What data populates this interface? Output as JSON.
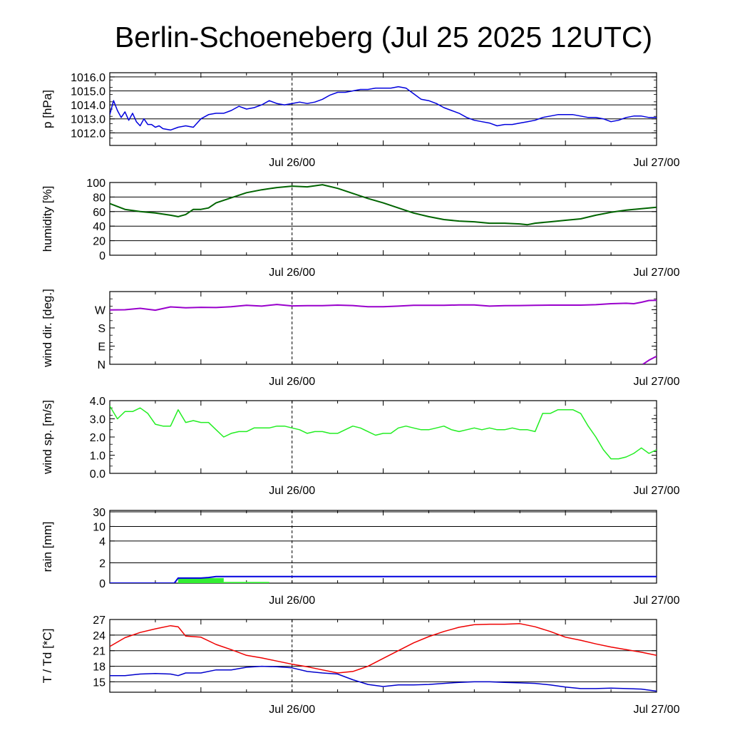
{
  "title": "Berlin-Schoeneberg (Jul 25 2025 12UTC)",
  "x_tick_labels": [
    "Jul 26/00",
    "Jul 27/00"
  ],
  "colors": {
    "pressure": "#0000dd",
    "humidity": "#006400",
    "wind_dir": "#9900cc",
    "wind_sp": "#22ee22",
    "rain_bar": "#33ee33",
    "rain_line": "#0000dd",
    "temp": "#ee0000",
    "dew": "#0000cc"
  },
  "chart_data": [
    {
      "type": "line",
      "id": "pressure",
      "ylabel": "p [hPa]",
      "ylim": [
        1011.1,
        1016.3
      ],
      "yticks": [
        1012.0,
        1013.0,
        1014.0,
        1015.0,
        1016.0
      ],
      "ytick_labels": [
        "1012.0",
        "1013.0",
        "1014.0",
        "1015.0",
        "1016.0"
      ],
      "grid": true,
      "series": [
        {
          "x": [
            0,
            0.5,
            1,
            1.5,
            2,
            2.5,
            3,
            3.5,
            4,
            4.5,
            5,
            5.5,
            6,
            6.5,
            7,
            8,
            9,
            10,
            11,
            12,
            13,
            14,
            15,
            16,
            17,
            18,
            19,
            20,
            21,
            22,
            23,
            24,
            25,
            26,
            27,
            28,
            29,
            30,
            31,
            32,
            33,
            34,
            35,
            36,
            37,
            38,
            39,
            40,
            41,
            42,
            43,
            44,
            45,
            46,
            47,
            48,
            49,
            50,
            51,
            52,
            53,
            54,
            55,
            56,
            57,
            58,
            59,
            60,
            61,
            62,
            63,
            64,
            65,
            66,
            67,
            68,
            69,
            70,
            71,
            72
          ],
          "values": [
            1013.3,
            1014.3,
            1013.6,
            1013.1,
            1013.5,
            1012.9,
            1013.4,
            1012.8,
            1012.5,
            1013.0,
            1012.6,
            1012.6,
            1012.4,
            1012.5,
            1012.3,
            1012.2,
            1012.4,
            1012.5,
            1012.4,
            1013.0,
            1013.3,
            1013.4,
            1013.4,
            1013.6,
            1013.9,
            1013.7,
            1013.8,
            1014.0,
            1014.3,
            1014.1,
            1014.0,
            1014.1,
            1014.2,
            1014.1,
            1014.2,
            1014.4,
            1014.7,
            1014.9,
            1014.9,
            1015.0,
            1015.1,
            1015.1,
            1015.2,
            1015.2,
            1015.2,
            1015.3,
            1015.2,
            1014.8,
            1014.4,
            1014.3,
            1014.1,
            1013.8,
            1013.6,
            1013.4,
            1013.1,
            1012.9,
            1012.8,
            1012.7,
            1012.5,
            1012.6,
            1012.6,
            1012.7,
            1012.8,
            1012.9,
            1013.1,
            1013.2,
            1013.3,
            1013.3,
            1013.3,
            1013.2,
            1013.1,
            1013.1,
            1013.0,
            1012.8,
            1012.9,
            1013.1,
            1013.2,
            1013.2,
            1013.1,
            1013.1
          ]
        }
      ]
    },
    {
      "type": "line",
      "id": "humidity",
      "ylabel": "humidity [%]",
      "ylim": [
        0,
        100
      ],
      "yticks": [
        0,
        20,
        40,
        60,
        80,
        100
      ],
      "ytick_labels": [
        "0",
        "20",
        "40",
        "60",
        "80",
        "100"
      ],
      "grid": true,
      "series": [
        {
          "x": [
            0,
            2,
            4,
            6,
            8,
            9,
            10,
            11,
            12,
            13,
            14,
            16,
            18,
            20,
            22,
            24,
            26,
            28,
            30,
            32,
            34,
            36,
            38,
            40,
            42,
            44,
            46,
            48,
            50,
            52,
            54,
            55,
            56,
            58,
            60,
            62,
            64,
            66,
            68,
            70,
            72
          ],
          "values": [
            71,
            63,
            60,
            58,
            55,
            53,
            56,
            63,
            63,
            65,
            72,
            79,
            86,
            90,
            93,
            95,
            94,
            97,
            92,
            85,
            78,
            72,
            65,
            58,
            53,
            49,
            47,
            46,
            44,
            44,
            43,
            42,
            44,
            46,
            48,
            50,
            55,
            59,
            62,
            64,
            66
          ]
        }
      ]
    },
    {
      "type": "line",
      "id": "wind_dir",
      "ylabel": "wind dir. [deg.]",
      "ylim": [
        0,
        360
      ],
      "yticks": [
        0,
        90,
        180,
        270
      ],
      "ytick_labels": [
        "N",
        "E",
        "S",
        "W"
      ],
      "grid": false,
      "series": [
        {
          "x": [
            0,
            2,
            4,
            6,
            8,
            10,
            12,
            14,
            16,
            18,
            20,
            22,
            24,
            26,
            28,
            30,
            32,
            34,
            36,
            38,
            40,
            42,
            44,
            46,
            48,
            50,
            52,
            54,
            56,
            58,
            60,
            62,
            64,
            66,
            68,
            69,
            70,
            71,
            72
          ],
          "values": [
            269,
            270,
            277,
            268,
            284,
            280,
            282,
            281,
            285,
            292,
            288,
            296,
            289,
            290,
            290,
            293,
            291,
            285,
            285,
            288,
            292,
            292,
            292,
            294,
            294,
            288,
            290,
            291,
            292,
            293,
            293,
            293,
            295,
            300,
            302,
            300,
            307,
            316,
            317
          ]
        },
        {
          "x": [
            70.2,
            71,
            72
          ],
          "values": [
            0,
            20,
            40
          ]
        }
      ]
    },
    {
      "type": "line",
      "id": "wind_sp",
      "ylabel": "wind sp. [m/s]",
      "ylim": [
        0,
        4.0
      ],
      "yticks": [
        0.0,
        1.0,
        2.0,
        3.0,
        4.0
      ],
      "ytick_labels": [
        "0.0",
        "1.0",
        "2.0",
        "3.0",
        "4.0"
      ],
      "grid": false,
      "series": [
        {
          "x": [
            0,
            1,
            2,
            3,
            4,
            5,
            6,
            7,
            8,
            9,
            10,
            11,
            12,
            13,
            14,
            15,
            16,
            17,
            18,
            19,
            20,
            21,
            22,
            23,
            24,
            25,
            26,
            27,
            28,
            29,
            30,
            31,
            32,
            33,
            34,
            35,
            36,
            37,
            38,
            39,
            40,
            41,
            42,
            43,
            44,
            45,
            46,
            47,
            48,
            49,
            50,
            51,
            52,
            53,
            54,
            55,
            56,
            57,
            58,
            59,
            60,
            61,
            62,
            63,
            64,
            65,
            66,
            67,
            68,
            69,
            70,
            71,
            72
          ],
          "values": [
            3.7,
            3.0,
            3.4,
            3.4,
            3.6,
            3.3,
            2.7,
            2.6,
            2.6,
            3.5,
            2.8,
            2.9,
            2.8,
            2.8,
            2.4,
            2.0,
            2.2,
            2.3,
            2.3,
            2.5,
            2.5,
            2.5,
            2.6,
            2.6,
            2.5,
            2.4,
            2.2,
            2.3,
            2.3,
            2.2,
            2.2,
            2.4,
            2.6,
            2.5,
            2.3,
            2.1,
            2.2,
            2.2,
            2.5,
            2.6,
            2.5,
            2.4,
            2.4,
            2.5,
            2.6,
            2.4,
            2.3,
            2.4,
            2.5,
            2.4,
            2.5,
            2.4,
            2.4,
            2.5,
            2.4,
            2.4,
            2.3,
            3.3,
            3.3,
            3.5,
            3.5,
            3.5,
            3.3,
            2.6,
            2.0,
            1.3,
            0.8,
            0.8,
            0.9,
            1.1,
            1.4,
            1.1,
            1.3
          ]
        }
      ]
    },
    {
      "type": "bar+line",
      "id": "rain",
      "ylabel": "rain [mm]",
      "ytick_labels": [
        "0",
        "2",
        "4",
        "10",
        "30"
      ],
      "grid": true,
      "bars": [
        {
          "x0": 9,
          "x1": 15,
          "value": 0.5
        },
        {
          "x0": 15,
          "x1": 21,
          "value": 0.12
        }
      ],
      "series": [
        {
          "x": [
            0,
            8.5,
            9,
            12,
            13,
            14,
            72
          ],
          "values": [
            0,
            0,
            0.5,
            0.5,
            0.55,
            0.65,
            0.65
          ]
        }
      ]
    },
    {
      "type": "line",
      "id": "temp",
      "ylabel": "T / Td [*C]",
      "ylim": [
        13,
        27
      ],
      "yticks": [
        15,
        18,
        21,
        24,
        27
      ],
      "ytick_labels": [
        "15",
        "18",
        "21",
        "24",
        "27"
      ],
      "grid": true,
      "series": [
        {
          "name": "T",
          "x": [
            0,
            2,
            4,
            6,
            8,
            9,
            10,
            12,
            14,
            16,
            18,
            20,
            22,
            24,
            26,
            28,
            30,
            32,
            34,
            36,
            38,
            40,
            42,
            44,
            46,
            48,
            50,
            52,
            54,
            56,
            58,
            60,
            62,
            64,
            66,
            68,
            70,
            72
          ],
          "values": [
            21.8,
            23.5,
            24.5,
            25.2,
            25.8,
            25.6,
            23.8,
            23.6,
            22.2,
            21.2,
            20.1,
            19.6,
            19.0,
            18.4,
            17.9,
            17.3,
            16.7,
            17.0,
            18.0,
            19.5,
            21.0,
            22.5,
            23.7,
            24.7,
            25.5,
            26.0,
            26.1,
            26.1,
            26.2,
            25.6,
            24.7,
            23.6,
            23.0,
            22.3,
            21.7,
            21.2,
            20.7,
            20.1
          ]
        },
        {
          "name": "Td",
          "x": [
            0,
            2,
            4,
            6,
            8,
            9,
            10,
            12,
            14,
            16,
            18,
            20,
            22,
            24,
            26,
            28,
            30,
            32,
            34,
            36,
            38,
            40,
            42,
            44,
            46,
            48,
            50,
            52,
            54,
            56,
            58,
            60,
            62,
            64,
            66,
            68,
            70,
            72
          ],
          "values": [
            16.2,
            16.2,
            16.5,
            16.6,
            16.5,
            16.2,
            16.7,
            16.7,
            17.3,
            17.3,
            17.8,
            18.0,
            17.9,
            17.7,
            17.0,
            16.7,
            16.5,
            15.4,
            14.5,
            14.1,
            14.4,
            14.4,
            14.5,
            14.7,
            14.9,
            15.0,
            15.0,
            14.9,
            14.8,
            14.7,
            14.4,
            14.0,
            13.7,
            13.7,
            13.8,
            13.7,
            13.6,
            13.2
          ]
        }
      ]
    }
  ]
}
